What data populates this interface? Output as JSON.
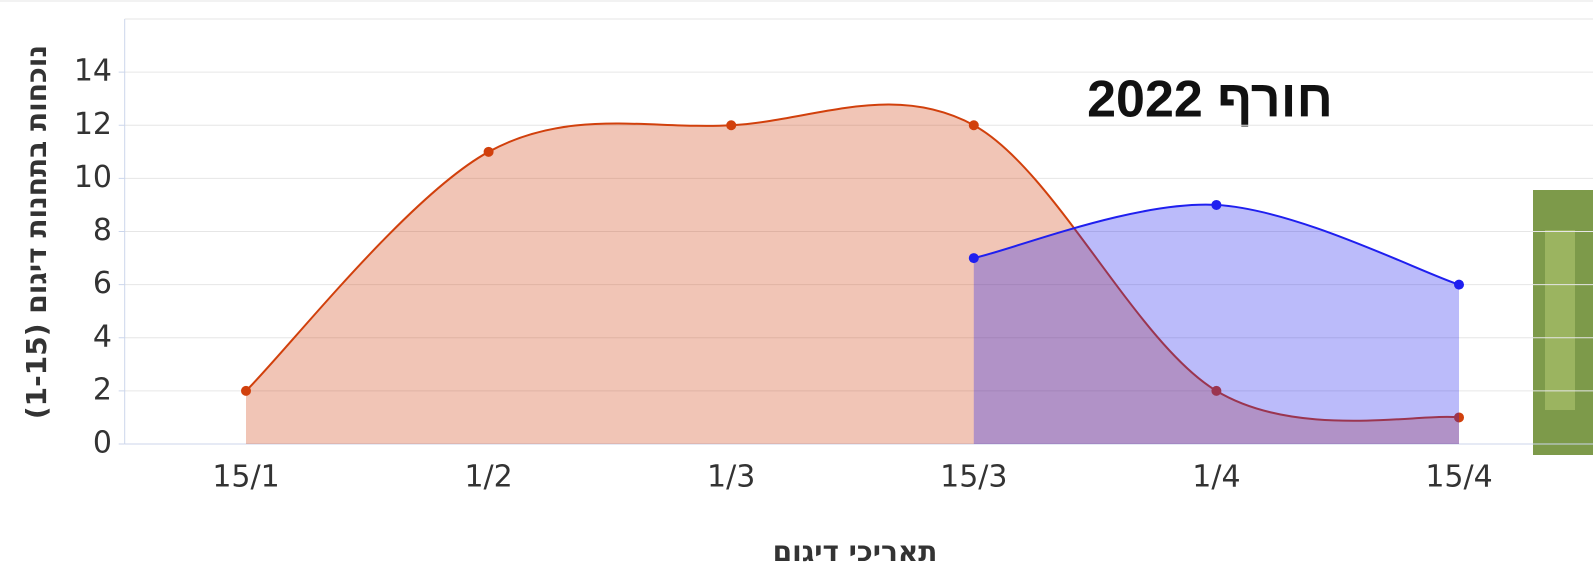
{
  "chart_data": {
    "type": "areaspline",
    "title": "חורף 2022",
    "x_label": "תאריכי דיגום",
    "y_label": "נוכחות בתחנות דיגום (1-15)",
    "categories": [
      "15/1",
      "1/2",
      "1/3",
      "15/3",
      "1/4",
      "15/4"
    ],
    "series": [
      {
        "color": "#d1400c",
        "values": [
          2,
          11,
          12,
          12,
          2,
          1
        ]
      },
      {
        "color": "#1f1fef",
        "values": [
          null,
          null,
          null,
          7,
          9,
          6
        ]
      }
    ],
    "ylim": [
      0,
      16
    ],
    "yticks": [
      0,
      2,
      4,
      6,
      8,
      10,
      12,
      14
    ],
    "grid": true
  }
}
